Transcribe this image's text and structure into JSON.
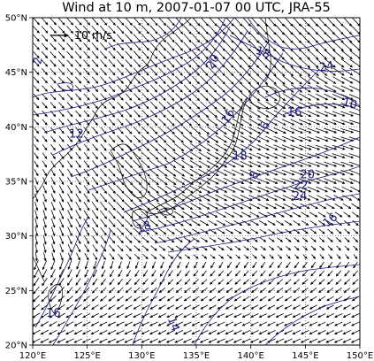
{
  "title": "Wind at 10 m, 2007-01-07 00 UTC, JRA-55",
  "colors": {
    "contour": "#1a1a80",
    "coast": "#000000",
    "arrow": "#000000",
    "grid": "#555555"
  },
  "legend": {
    "label": "10 m/s"
  },
  "axes": {
    "lon_range": [
      120,
      150
    ],
    "lat_range": [
      20,
      50
    ],
    "x_ticks": [
      {
        "value": 120,
        "label": "120°E"
      },
      {
        "value": 125,
        "label": "125°E"
      },
      {
        "value": 130,
        "label": "130°E"
      },
      {
        "value": 135,
        "label": "135°E"
      },
      {
        "value": 140,
        "label": "140°E"
      },
      {
        "value": 145,
        "label": "145°E"
      },
      {
        "value": 150,
        "label": "150°E"
      }
    ],
    "y_ticks": [
      {
        "value": 20,
        "label": "20°N"
      },
      {
        "value": 25,
        "label": "25°N"
      },
      {
        "value": 30,
        "label": "30°N"
      },
      {
        "value": 35,
        "label": "35°N"
      },
      {
        "value": 40,
        "label": "40°N"
      },
      {
        "value": 45,
        "label": "45°N"
      },
      {
        "value": 50,
        "label": "50°N"
      }
    ],
    "gridlines": true,
    "grid_style": "dotted"
  },
  "contour_labels": [
    {
      "text": "2",
      "lon": 120.8,
      "lat": 46.0,
      "rot": -80
    },
    {
      "text": "12",
      "lon": 124.0,
      "lat": 39.0,
      "rot": 0
    },
    {
      "text": "20",
      "lon": 136.8,
      "lat": 45.8,
      "rot": -60
    },
    {
      "text": "18",
      "lon": 141.0,
      "lat": 46.5,
      "rot": 20
    },
    {
      "text": "24",
      "lon": 147.0,
      "lat": 45.2,
      "rot": -10
    },
    {
      "text": "16",
      "lon": 138.2,
      "lat": 40.8,
      "rot": -60
    },
    {
      "text": "16",
      "lon": 144.0,
      "lat": 41.0,
      "rot": 0
    },
    {
      "text": "10",
      "lon": 149.0,
      "lat": 41.8,
      "rot": 15
    },
    {
      "text": "6",
      "lon": 141.6,
      "lat": 40.0,
      "rot": -70
    },
    {
      "text": "18",
      "lon": 139.0,
      "lat": 37.0,
      "rot": 0
    },
    {
      "text": "8",
      "lon": 140.6,
      "lat": 35.4,
      "rot": -60
    },
    {
      "text": "20",
      "lon": 145.2,
      "lat": 35.3,
      "rot": 0
    },
    {
      "text": "22",
      "lon": 144.6,
      "lat": 34.3,
      "rot": 0
    },
    {
      "text": "24",
      "lon": 144.5,
      "lat": 33.3,
      "rot": 0
    },
    {
      "text": "16",
      "lon": 147.5,
      "lat": 31.2,
      "rot": -40
    },
    {
      "text": "18",
      "lon": 130.3,
      "lat": 30.5,
      "rot": -20
    },
    {
      "text": "16",
      "lon": 121.9,
      "lat": 22.6,
      "rot": 0
    },
    {
      "text": "14",
      "lon": 132.6,
      "lat": 21.8,
      "rot": 70
    }
  ]
}
